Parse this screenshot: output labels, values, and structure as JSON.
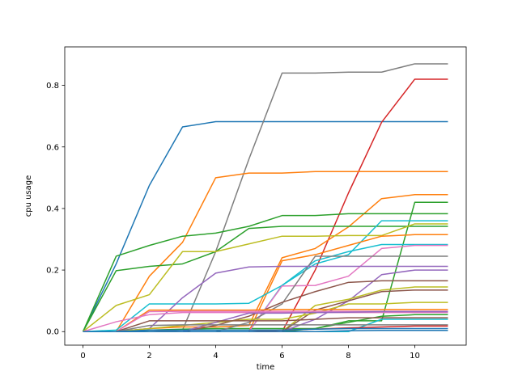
{
  "chart_data": {
    "type": "line",
    "xlabel": "time",
    "ylabel": "cpu usage",
    "xlim": [
      -0.55,
      11.55
    ],
    "ylim": [
      -0.044,
      0.925
    ],
    "xticks": [
      0,
      2,
      4,
      6,
      8,
      10
    ],
    "yticks": [
      0.0,
      0.2,
      0.4,
      0.6,
      0.8
    ],
    "ytick_labels": [
      "0.0",
      "0.2",
      "0.4",
      "0.6",
      "0.8"
    ],
    "grid": false,
    "x": [
      0,
      1,
      2,
      3,
      4,
      5,
      6,
      7,
      8,
      9,
      10,
      11
    ],
    "series": [
      {
        "color": "#1f77b4",
        "values": [
          0,
          0.22,
          0.475,
          0.665,
          0.682,
          0.682,
          0.682,
          0.682,
          0.682,
          0.682,
          0.682,
          0.682
        ]
      },
      {
        "color": "#7f7f7f",
        "values": [
          0,
          0,
          0,
          0.005,
          0.26,
          0.56,
          0.84,
          0.84,
          0.843,
          0.843,
          0.87,
          0.87
        ]
      },
      {
        "color": "#d62728",
        "values": [
          0,
          0,
          0,
          0,
          0,
          0,
          0,
          0.2,
          0.45,
          0.68,
          0.82,
          0.82
        ]
      },
      {
        "color": "#ff7f0e",
        "values": [
          0,
          0,
          0.18,
          0.29,
          0.5,
          0.515,
          0.515,
          0.52,
          0.52,
          0.52,
          0.52,
          0.52
        ]
      },
      {
        "color": "#ff7f0e",
        "values": [
          0,
          0,
          0.01,
          0.015,
          0.015,
          0.02,
          0.24,
          0.27,
          0.34,
          0.432,
          0.445,
          0.445
        ]
      },
      {
        "color": "#2ca02c",
        "values": [
          0,
          0,
          0.005,
          0.008,
          0.01,
          0.01,
          0.01,
          0.01,
          0.035,
          0.035,
          0.42,
          0.42
        ]
      },
      {
        "color": "#2ca02c",
        "values": [
          0,
          0.245,
          0.28,
          0.31,
          0.32,
          0.342,
          0.377,
          0.377,
          0.383,
          0.383,
          0.383,
          0.383
        ]
      },
      {
        "color": "#2ca02c",
        "values": [
          0,
          0.198,
          0.212,
          0.22,
          0.26,
          0.335,
          0.342,
          0.342,
          0.342,
          0.342,
          0.342,
          0.342
        ]
      },
      {
        "color": "#17becf",
        "values": [
          0,
          0,
          0,
          0,
          0,
          0,
          0.15,
          0.22,
          0.25,
          0.36,
          0.36,
          0.36
        ]
      },
      {
        "color": "#bcbd22",
        "values": [
          0,
          0.085,
          0.12,
          0.26,
          0.26,
          0.285,
          0.31,
          0.31,
          0.312,
          0.312,
          0.35,
          0.35
        ]
      },
      {
        "color": "#ff7f0e",
        "values": [
          0,
          0,
          0,
          0,
          0,
          0,
          0.23,
          0.25,
          0.28,
          0.31,
          0.315,
          0.315
        ]
      },
      {
        "color": "#17becf",
        "values": [
          0,
          0.005,
          0.09,
          0.09,
          0.09,
          0.092,
          0.15,
          0.23,
          0.26,
          0.283,
          0.283,
          0.283
        ]
      },
      {
        "color": "#e377c2",
        "values": [
          0,
          0,
          0,
          0,
          0,
          0,
          0.148,
          0.15,
          0.18,
          0.27,
          0.28,
          0.28
        ]
      },
      {
        "color": "#7f7f7f",
        "values": [
          0,
          0,
          0,
          0,
          0,
          0.03,
          0.09,
          0.245,
          0.245,
          0.245,
          0.245,
          0.245
        ]
      },
      {
        "color": "#9467bd",
        "values": [
          0,
          0,
          0.01,
          0.11,
          0.19,
          0.21,
          0.212,
          0.212,
          0.212,
          0.212,
          0.212,
          0.212
        ]
      },
      {
        "color": "#9467bd",
        "values": [
          0,
          0,
          0,
          0,
          0,
          0,
          0,
          0.04,
          0.1,
          0.185,
          0.2,
          0.2
        ]
      },
      {
        "color": "#8c564b",
        "values": [
          0,
          0,
          0,
          0,
          0.02,
          0.05,
          0.095,
          0.13,
          0.16,
          0.165,
          0.165,
          0.165
        ]
      },
      {
        "color": "#bcbd22",
        "values": [
          0,
          0,
          0,
          0,
          0,
          0,
          0,
          0.085,
          0.105,
          0.135,
          0.145,
          0.145
        ]
      },
      {
        "color": "#8c564b",
        "values": [
          0,
          0,
          0,
          0,
          0,
          0,
          0,
          0.07,
          0.1,
          0.13,
          0.135,
          0.135
        ]
      },
      {
        "color": "#bcbd22",
        "values": [
          0,
          0,
          0.01,
          0.02,
          0.03,
          0.04,
          0.04,
          0.06,
          0.09,
          0.09,
          0.095,
          0.095
        ]
      },
      {
        "color": "#ff7f0e",
        "values": [
          0,
          0,
          0.07,
          0.07,
          0.07,
          0.07,
          0.072,
          0.072,
          0.072,
          0.072,
          0.072,
          0.072
        ]
      },
      {
        "color": "#e377c2",
        "values": [
          0,
          0,
          0.065,
          0.066,
          0.066,
          0.066,
          0.066,
          0.066,
          0.066,
          0.066,
          0.066,
          0.066
        ]
      },
      {
        "color": "#e377c2",
        "values": [
          0,
          0.032,
          0.055,
          0.062,
          0.062,
          0.062,
          0.062,
          0.062,
          0.062,
          0.062,
          0.062,
          0.062
        ]
      },
      {
        "color": "#9467bd",
        "values": [
          0,
          0,
          0,
          0,
          0.03,
          0.06,
          0.06,
          0.062,
          0.063,
          0.065,
          0.065,
          0.065
        ]
      },
      {
        "color": "#2ca02c",
        "values": [
          0,
          0,
          0,
          0,
          0,
          0,
          0,
          0.01,
          0.03,
          0.05,
          0.055,
          0.055
        ]
      },
      {
        "color": "#8c564b",
        "values": [
          0,
          0,
          0.035,
          0.035,
          0.035,
          0.035,
          0.035,
          0.04,
          0.045,
          0.045,
          0.045,
          0.045
        ]
      },
      {
        "color": "#17becf",
        "values": [
          0,
          0,
          0,
          0,
          0,
          0,
          0,
          0,
          0,
          0.04,
          0.04,
          0.04
        ]
      },
      {
        "color": "#7f7f7f",
        "values": [
          0,
          0,
          0.02,
          0.022,
          0.022,
          0.022,
          0.022,
          0.022,
          0.022,
          0.022,
          0.022,
          0.022
        ]
      },
      {
        "color": "#d62728",
        "values": [
          0,
          0,
          0,
          0,
          0,
          0,
          0.005,
          0.008,
          0.012,
          0.015,
          0.018,
          0.018
        ]
      },
      {
        "color": "#1f77b4",
        "values": [
          0,
          0,
          0.005,
          0.005,
          0.005,
          0.005,
          0.005,
          0.008,
          0.01,
          0.01,
          0.01,
          0.01
        ]
      },
      {
        "color": "#1f77b4",
        "values": [
          0,
          0,
          0,
          0,
          0,
          0,
          0,
          0,
          0.003,
          0.004,
          0.004,
          0.004
        ]
      }
    ]
  }
}
